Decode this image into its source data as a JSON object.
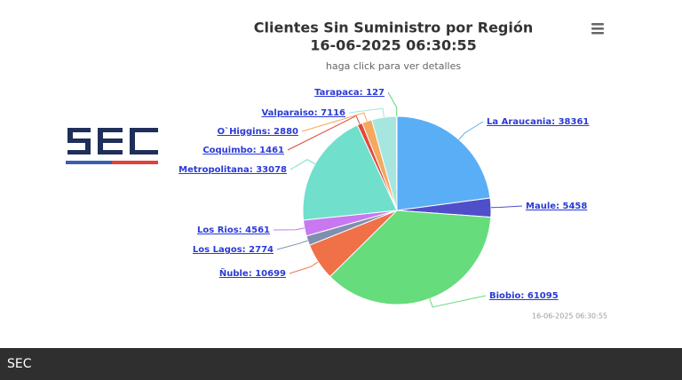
{
  "chart_data": {
    "type": "pie",
    "title": "Clientes Sin Suministro por Región",
    "title_date": "16-06-2025 06:30:55",
    "subtitle": "haga click para ver detalles",
    "credits": "16-06-2025 06:30:55",
    "categories": [
      "La Araucania",
      "Maule",
      "Biobio",
      "Ñuble",
      "Los Lagos",
      "Los Rios",
      "Metropolitana",
      "Coquimbo",
      "O`Higgins",
      "Valparaiso",
      "Tarapaca"
    ],
    "values": [
      38361,
      5458,
      61095,
      10699,
      2774,
      4561,
      33078,
      1461,
      2880,
      7116,
      127
    ],
    "value_labels": [
      "La Araucania: 38361",
      "Maule: 5458",
      "Biobio: 61095",
      "Ñuble: 10699",
      "Los Lagos: 2774",
      "Los Rios: 4561",
      "Metropolitana: 33078",
      "Coquimbo: 1461",
      "O`Higgins: 2880",
      "Valparaiso: 7116",
      "Tarapaca: 127"
    ],
    "colors": [
      "#5aaef5",
      "#4f4fc9",
      "#66dc7c",
      "#f07048",
      "#7f8fb0",
      "#c878f0",
      "#70e0cc",
      "#e0483c",
      "#f4a860",
      "#a6e6de",
      "#60d080"
    ]
  },
  "footer": {
    "text": "SEC"
  }
}
